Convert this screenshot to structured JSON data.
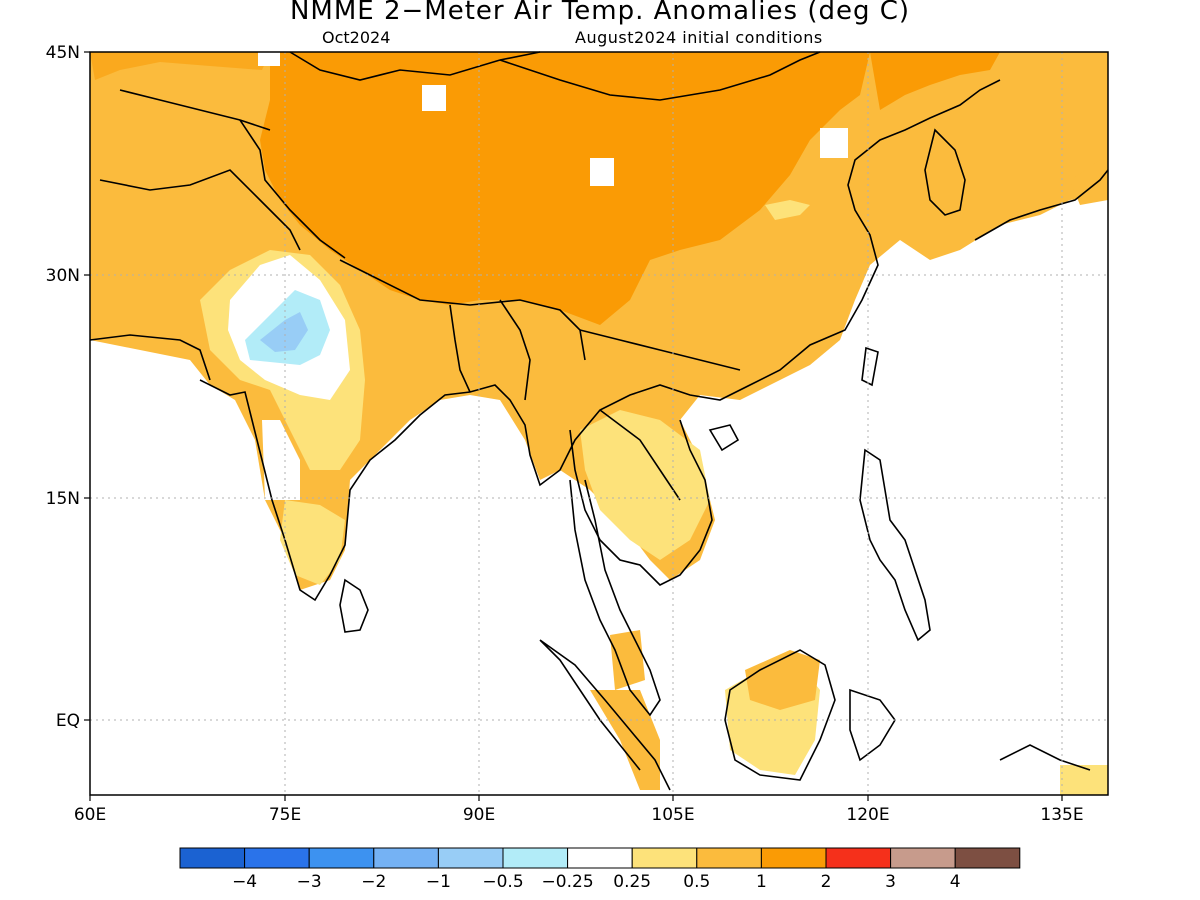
{
  "title": "NMME 2−Meter Air Temp. Anomalies (deg C)",
  "subtitle_left": "Oct2024",
  "subtitle_right": "August2024 initial conditions",
  "axes": {
    "x_ticks": [
      "60E",
      "75E",
      "90E",
      "105E",
      "120E",
      "135E"
    ],
    "y_ticks": [
      "45N",
      "30N",
      "15N",
      "EQ"
    ]
  },
  "colorbar": {
    "colors": [
      "#1b62d2",
      "#2a73ea",
      "#3d92f0",
      "#75b2f4",
      "#98cdf6",
      "#b2ecf8",
      "#ffffff",
      "#fde27a",
      "#fbbb3d",
      "#fa9b05",
      "#f5301b",
      "#c79b8c",
      "#7d4f42"
    ],
    "labels": [
      "−4",
      "−3",
      "−2",
      "−1",
      "−0.5",
      "−0.25",
      "0.25",
      "0.5",
      "1",
      "2",
      "3",
      "4"
    ]
  },
  "palette": {
    "frame": "#000000",
    "grid": "#b0b0b0",
    "coast": "#000000"
  }
}
